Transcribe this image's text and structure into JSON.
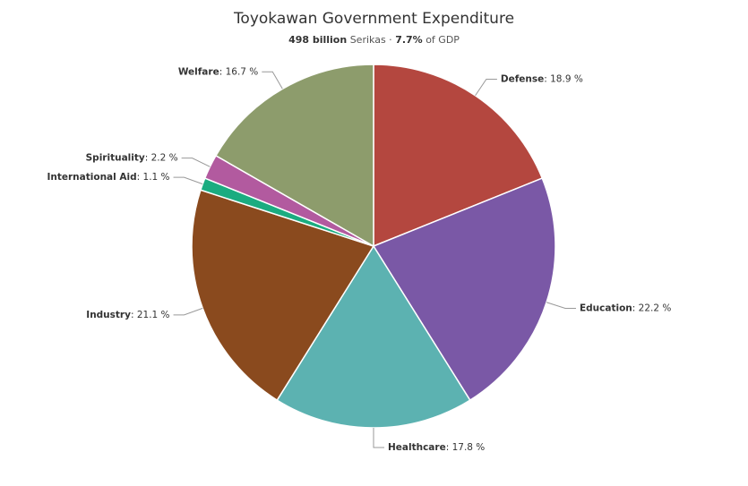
{
  "chart_data": {
    "type": "pie",
    "title": "Toyokawan Government Expenditure",
    "subtitle": {
      "amount": "498 billion",
      "currency": "Serikas ·",
      "share": "7.7%",
      "share_of": "of GDP"
    },
    "categories": [
      "Defense",
      "Education",
      "Healthcare",
      "Industry",
      "International Aid",
      "Spirituality",
      "Welfare"
    ],
    "values": [
      18.9,
      22.2,
      17.8,
      21.1,
      1.1,
      2.2,
      16.7
    ],
    "value_labels": [
      ": 18.9 %",
      ": 22.2 %",
      ": 17.8 %",
      ": 21.1 %",
      ": 1.1 %",
      ": 2.2 %",
      ": 16.7 %"
    ],
    "colors": [
      "#b4473f",
      "#7a58a6",
      "#5cb2b1",
      "#8a4a1e",
      "#1bac80",
      "#b25a9f",
      "#8d9c6c"
    ]
  }
}
